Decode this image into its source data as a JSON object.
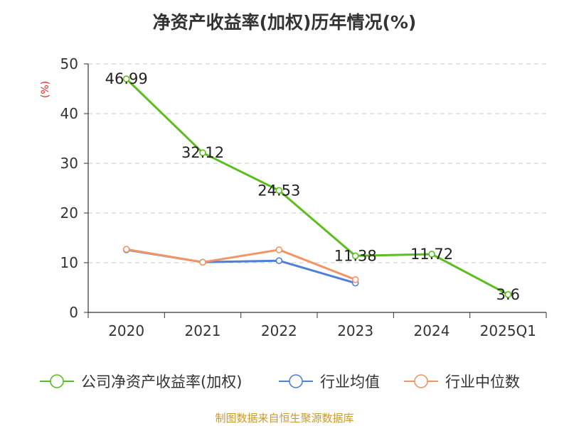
{
  "chart_data": {
    "type": "line",
    "title": "净资产收益率(加权)历年情况(%)",
    "ylabel": "(%)",
    "xlabel": "",
    "categories": [
      "2020",
      "2021",
      "2022",
      "2023",
      "2024",
      "2025Q1"
    ],
    "ylim": [
      0,
      50
    ],
    "yticks": [
      0,
      10,
      20,
      30,
      40,
      50
    ],
    "grid": "horizontal dashed",
    "legend_position": "bottom",
    "series": [
      {
        "name": "公司净资产收益率(加权)",
        "color": "#5cbd1f",
        "values": [
          46.99,
          32.12,
          24.53,
          11.38,
          11.72,
          3.6
        ],
        "labels": [
          "46.99",
          "32.12",
          "24.53",
          "11.38",
          "11.72",
          "3.6"
        ]
      },
      {
        "name": "行业均值",
        "color": "#4f7fd9",
        "values": [
          12.6,
          10.1,
          10.4,
          5.9,
          null,
          null
        ]
      },
      {
        "name": "行业中位数",
        "color": "#f29466",
        "values": [
          12.7,
          10.1,
          12.6,
          6.6,
          null,
          null
        ]
      }
    ]
  },
  "footer": {
    "source": "制图数据来自恒生聚源数据库"
  }
}
